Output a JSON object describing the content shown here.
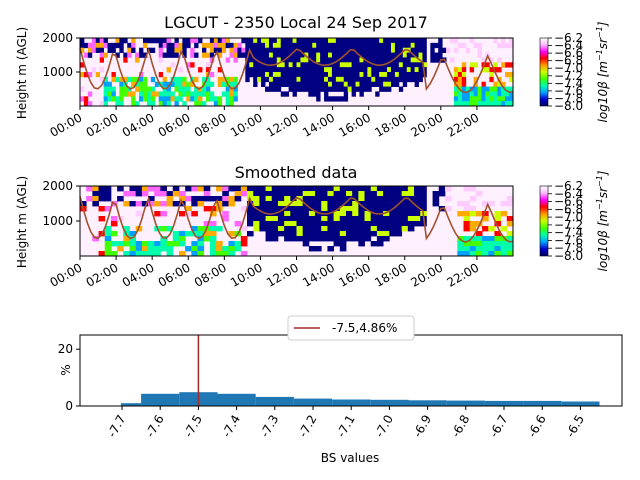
{
  "chart_data": [
    {
      "type": "heatmap",
      "title": "LGCUT - 2350 Local 24 Sep 2017",
      "ylabel": "Height m (AGL)",
      "yticks": [
        1000,
        2000
      ],
      "ylim": [
        0,
        2000
      ],
      "xticks": [
        "00:00",
        "02:00",
        "04:00",
        "06:00",
        "08:00",
        "10:00",
        "12:00",
        "14:00",
        "16:00",
        "18:00",
        "20:00",
        "22:00"
      ],
      "colorbar": {
        "label_main": "log10β [m",
        "sup1": "−1",
        "mid": "sr",
        "sup2": "−1",
        "close": "]",
        "ticks": [
          "−6.2",
          "−6.4",
          "−6.6",
          "−6.8",
          "−7.0",
          "−7.2",
          "−7.4",
          "−7.6",
          "−7.8",
          "−8.0"
        ]
      }
    },
    {
      "type": "heatmap",
      "title": "Smoothed data",
      "ylabel": "Height m (AGL)",
      "yticks": [
        1000,
        2000
      ],
      "ylim": [
        0,
        2000
      ],
      "xticks": [
        "00:00",
        "02:00",
        "04:00",
        "06:00",
        "08:00",
        "10:00",
        "12:00",
        "14:00",
        "16:00",
        "18:00",
        "20:00",
        "22:00"
      ],
      "colorbar": {
        "label_main": "log10β [m",
        "sup1": "−1",
        "mid": "sr",
        "sup2": "−1",
        "close": "]",
        "ticks": [
          "−6.2",
          "−6.4",
          "−6.6",
          "−6.8",
          "−7.0",
          "−7.2",
          "−7.4",
          "−7.6",
          "−7.8",
          "−8.0"
        ]
      }
    },
    {
      "type": "bar",
      "xlabel": "BS values",
      "ylabel": "%",
      "ylim": [
        0,
        25
      ],
      "yticks": [
        0,
        20
      ],
      "categories": [
        "-7.7",
        "-7.6",
        "-7.5",
        "-7.4",
        "-7.3",
        "-7.2",
        "-7.1",
        "-7.0",
        "-6.9",
        "-6.8",
        "-6.7",
        "-6.6",
        "-6.5"
      ],
      "values": [
        1.0,
        4.3,
        4.86,
        4.3,
        3.2,
        2.6,
        2.3,
        2.2,
        2.0,
        1.9,
        1.8,
        1.8,
        1.6
      ],
      "vline": {
        "x": "-7.5",
        "legend": "-7.5,4.86%",
        "color": "#a52a2a"
      },
      "bar_color": "#1f77b4"
    }
  ]
}
